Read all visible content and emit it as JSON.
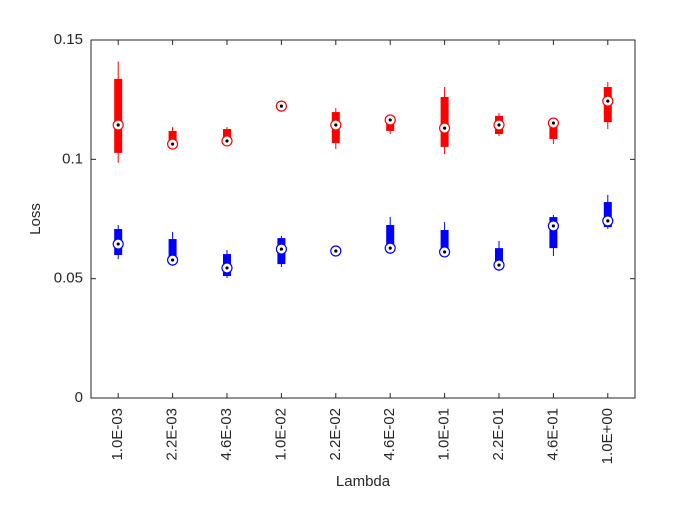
{
  "chart_data": {
    "type": "box",
    "xlabel": "Lambda",
    "ylabel": "Loss",
    "categories": [
      "1.0E-03",
      "2.2E-03",
      "4.6E-03",
      "1.0E-02",
      "2.2E-02",
      "4.6E-02",
      "1.0E-01",
      "2.2E-01",
      "4.6E-01",
      "1.0E+00"
    ],
    "ylim": [
      0,
      0.15
    ],
    "yticks": [
      0,
      0.05,
      0.1,
      0.15
    ],
    "series": [
      {
        "color": "#ff0000",
        "min": [
          0.0985,
          0.1047,
          0.1056,
          0.1215,
          0.1043,
          0.1106,
          0.1022,
          0.1098,
          0.1064,
          0.1127
        ],
        "q1": [
          0.1027,
          0.1068,
          0.1077,
          0.122,
          0.1068,
          0.1119,
          0.1052,
          0.1106,
          0.1085,
          0.1156
        ],
        "median": [
          0.1144,
          0.1064,
          0.1077,
          0.1223,
          0.1144,
          0.1165,
          0.1131,
          0.1144,
          0.1152,
          0.1244
        ],
        "q3": [
          0.1337,
          0.1119,
          0.1127,
          0.1225,
          0.1198,
          0.1177,
          0.1261,
          0.1182,
          0.1144,
          0.1303
        ],
        "max": [
          0.141,
          0.1135,
          0.1135,
          0.1228,
          0.1215,
          0.1177,
          0.1303,
          0.1194,
          0.1169,
          0.1324
        ]
      },
      {
        "color": "#0000ff",
        "min": [
          0.0582,
          0.0553,
          0.0503,
          0.0549,
          0.0608,
          0.0603,
          0.0599,
          0.0532,
          0.0595,
          0.0708
        ],
        "q1": [
          0.0599,
          0.0566,
          0.0511,
          0.0561,
          0.061,
          0.062,
          0.0612,
          0.0553,
          0.0628,
          0.0716
        ],
        "median": [
          0.0645,
          0.0578,
          0.0545,
          0.0624,
          0.0616,
          0.0628,
          0.0612,
          0.0557,
          0.0721,
          0.0742
        ],
        "q3": [
          0.0708,
          0.0666,
          0.0603,
          0.067,
          0.062,
          0.0725,
          0.0704,
          0.0628,
          0.0758,
          0.0821
        ],
        "max": [
          0.0725,
          0.0696,
          0.062,
          0.0679,
          0.0622,
          0.0758,
          0.0737,
          0.0658,
          0.0767,
          0.0851
        ]
      }
    ]
  }
}
